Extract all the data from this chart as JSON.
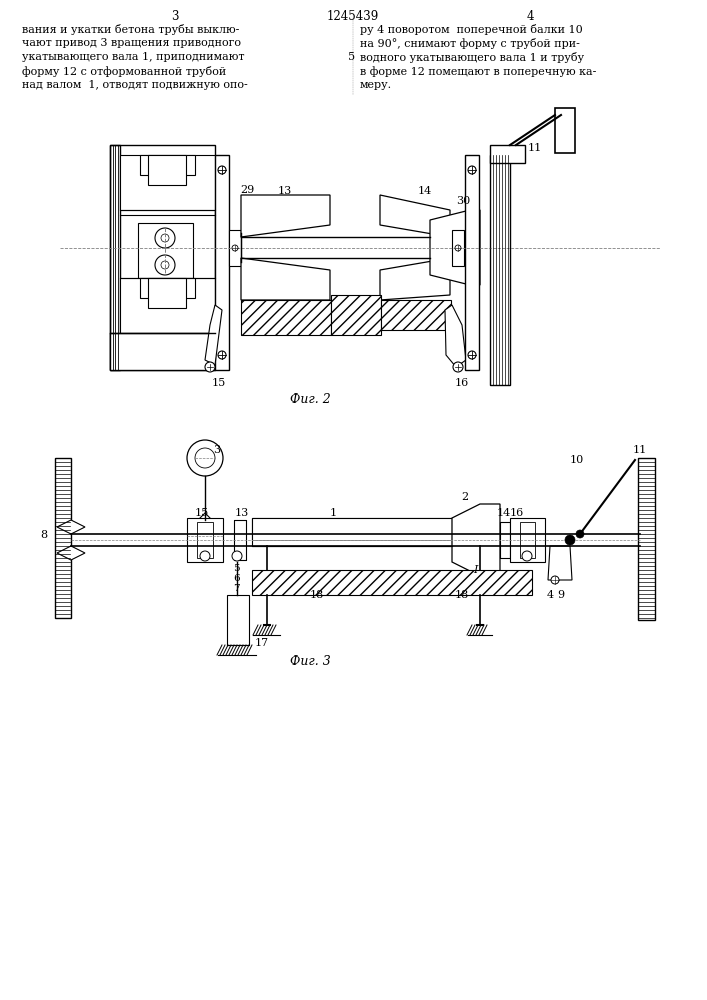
{
  "page_width": 7.07,
  "page_height": 10.0,
  "bg_color": "#ffffff",
  "header": {
    "page_left": "3",
    "patent_number": "1245439",
    "page_right": "4",
    "text_left": [
      "вания и укатки бетона трубы выклю-",
      "чают привод 3 вращения приводного",
      "укатывающего вала 1, приподнимают",
      "форму 12 с отформованной трубой",
      "над валом  1, отводят подвижную опо-"
    ],
    "text_right": [
      "ру 4 поворотом  поперечной балки 10",
      "на 90°, снимают форму с трубой при-",
      "водного укатывающего вала 1 и трубу",
      "в форме 12 помещают в поперечную ка-",
      "меру."
    ],
    "line_num": "5"
  },
  "fig2_caption": "Фиг. 2",
  "fig3_caption": "Фиг. 3",
  "line_color": "#000000",
  "text_color": "#000000"
}
